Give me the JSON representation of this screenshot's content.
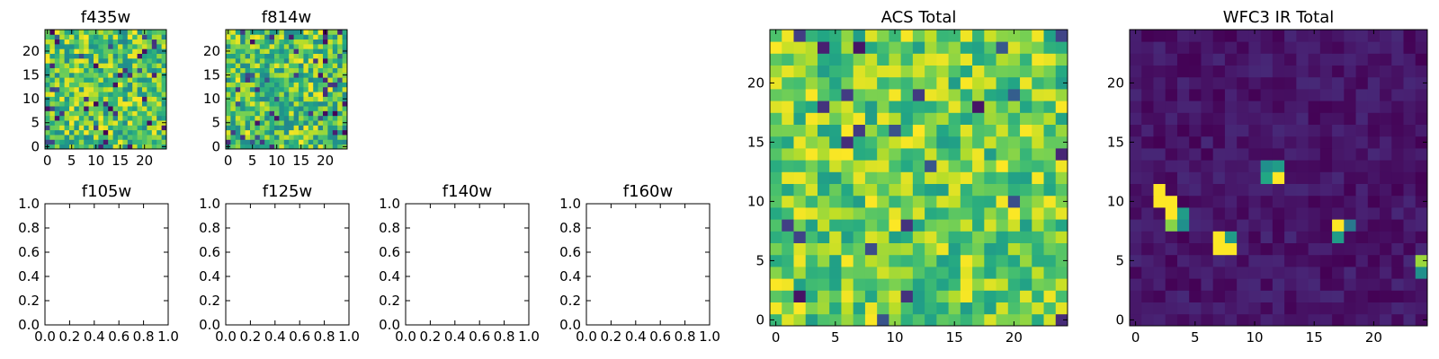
{
  "colormap": "viridis",
  "chart_data": [
    {
      "type": "heatmap",
      "title": "f435w",
      "grid_size": 25,
      "xticks": [
        "0",
        "5",
        "10",
        "15",
        "20"
      ],
      "yticks": [
        "0",
        "5",
        "10",
        "15",
        "20"
      ],
      "xlim": [
        -0.5,
        24.5
      ],
      "ylim": [
        -0.5,
        24.5
      ],
      "values": "uniform random noise, mostly mid-to-high (0.5-1.0) with sparse low cells"
    },
    {
      "type": "heatmap",
      "title": "f814w",
      "grid_size": 25,
      "xticks": [
        "0",
        "5",
        "10",
        "15",
        "20"
      ],
      "yticks": [
        "0",
        "5",
        "10",
        "15",
        "20"
      ],
      "xlim": [
        -0.5,
        24.5
      ],
      "ylim": [
        -0.5,
        24.5
      ],
      "values": "uniform random noise, mostly mid-to-high (0.5-1.0) with sparse low cells"
    },
    {
      "type": "heatmap",
      "title": "f105w",
      "xticks": [
        "0.0",
        "0.2",
        "0.4",
        "0.6",
        "0.8",
        "1.0"
      ],
      "yticks": [
        "0.0",
        "0.2",
        "0.4",
        "0.6",
        "0.8",
        "1.0"
      ],
      "xlim": [
        0,
        1
      ],
      "ylim": [
        0,
        1
      ],
      "values": []
    },
    {
      "type": "heatmap",
      "title": "f125w",
      "xticks": [
        "0.0",
        "0.2",
        "0.4",
        "0.6",
        "0.8",
        "1.0"
      ],
      "yticks": [
        "0.0",
        "0.2",
        "0.4",
        "0.6",
        "0.8",
        "1.0"
      ],
      "xlim": [
        0,
        1
      ],
      "ylim": [
        0,
        1
      ],
      "values": []
    },
    {
      "type": "heatmap",
      "title": "f140w",
      "xticks": [
        "0.0",
        "0.2",
        "0.4",
        "0.6",
        "0.8",
        "1.0"
      ],
      "yticks": [
        "0.0",
        "0.2",
        "0.4",
        "0.6",
        "0.8",
        "1.0"
      ],
      "xlim": [
        0,
        1
      ],
      "ylim": [
        0,
        1
      ],
      "values": []
    },
    {
      "type": "heatmap",
      "title": "f160w",
      "xticks": [
        "0.0",
        "0.2",
        "0.4",
        "0.6",
        "0.8",
        "1.0"
      ],
      "yticks": [
        "0.0",
        "0.2",
        "0.4",
        "0.6",
        "0.8",
        "1.0"
      ],
      "xlim": [
        0,
        1
      ],
      "ylim": [
        0,
        1
      ],
      "values": []
    },
    {
      "type": "heatmap",
      "title": "ACS Total",
      "grid_size": 25,
      "xticks": [
        "0",
        "5",
        "10",
        "15",
        "20"
      ],
      "yticks": [
        "0",
        "5",
        "10",
        "15",
        "20"
      ],
      "xlim": [
        -0.5,
        24.5
      ],
      "ylim": [
        -0.5,
        24.5
      ],
      "values": "random noise, mostly high (0.55-1.0) with a few dark cells"
    },
    {
      "type": "heatmap",
      "title": "WFC3 IR Total",
      "grid_size": 25,
      "xticks": [
        "0",
        "5",
        "10",
        "15",
        "20"
      ],
      "yticks": [
        "0",
        "5",
        "10",
        "15",
        "20"
      ],
      "xlim": [
        -0.5,
        24.5
      ],
      "ylim": [
        -0.5,
        24.5
      ],
      "background": "low (0.0-0.12)",
      "bright_cells": [
        {
          "x": 2,
          "y": 11,
          "value": 1.0
        },
        {
          "x": 2,
          "y": 10,
          "value": 1.0
        },
        {
          "x": 3,
          "y": 10,
          "value": 1.0
        },
        {
          "x": 3,
          "y": 9,
          "value": 1.0
        },
        {
          "x": 3,
          "y": 8,
          "value": 0.82
        },
        {
          "x": 4,
          "y": 9,
          "value": 0.55
        },
        {
          "x": 4,
          "y": 8,
          "value": 0.5
        },
        {
          "x": 7,
          "y": 7,
          "value": 1.0
        },
        {
          "x": 7,
          "y": 6,
          "value": 1.0
        },
        {
          "x": 8,
          "y": 6,
          "value": 1.0
        },
        {
          "x": 8,
          "y": 7,
          "value": 0.55
        },
        {
          "x": 11,
          "y": 13,
          "value": 0.5
        },
        {
          "x": 12,
          "y": 13,
          "value": 0.55
        },
        {
          "x": 11,
          "y": 12,
          "value": 0.6
        },
        {
          "x": 12,
          "y": 12,
          "value": 1.0
        },
        {
          "x": 17,
          "y": 8,
          "value": 1.0
        },
        {
          "x": 17,
          "y": 7,
          "value": 0.55
        },
        {
          "x": 18,
          "y": 8,
          "value": 0.4
        },
        {
          "x": 24,
          "y": 5,
          "value": 0.85
        },
        {
          "x": 24,
          "y": 4,
          "value": 0.5
        }
      ]
    }
  ]
}
